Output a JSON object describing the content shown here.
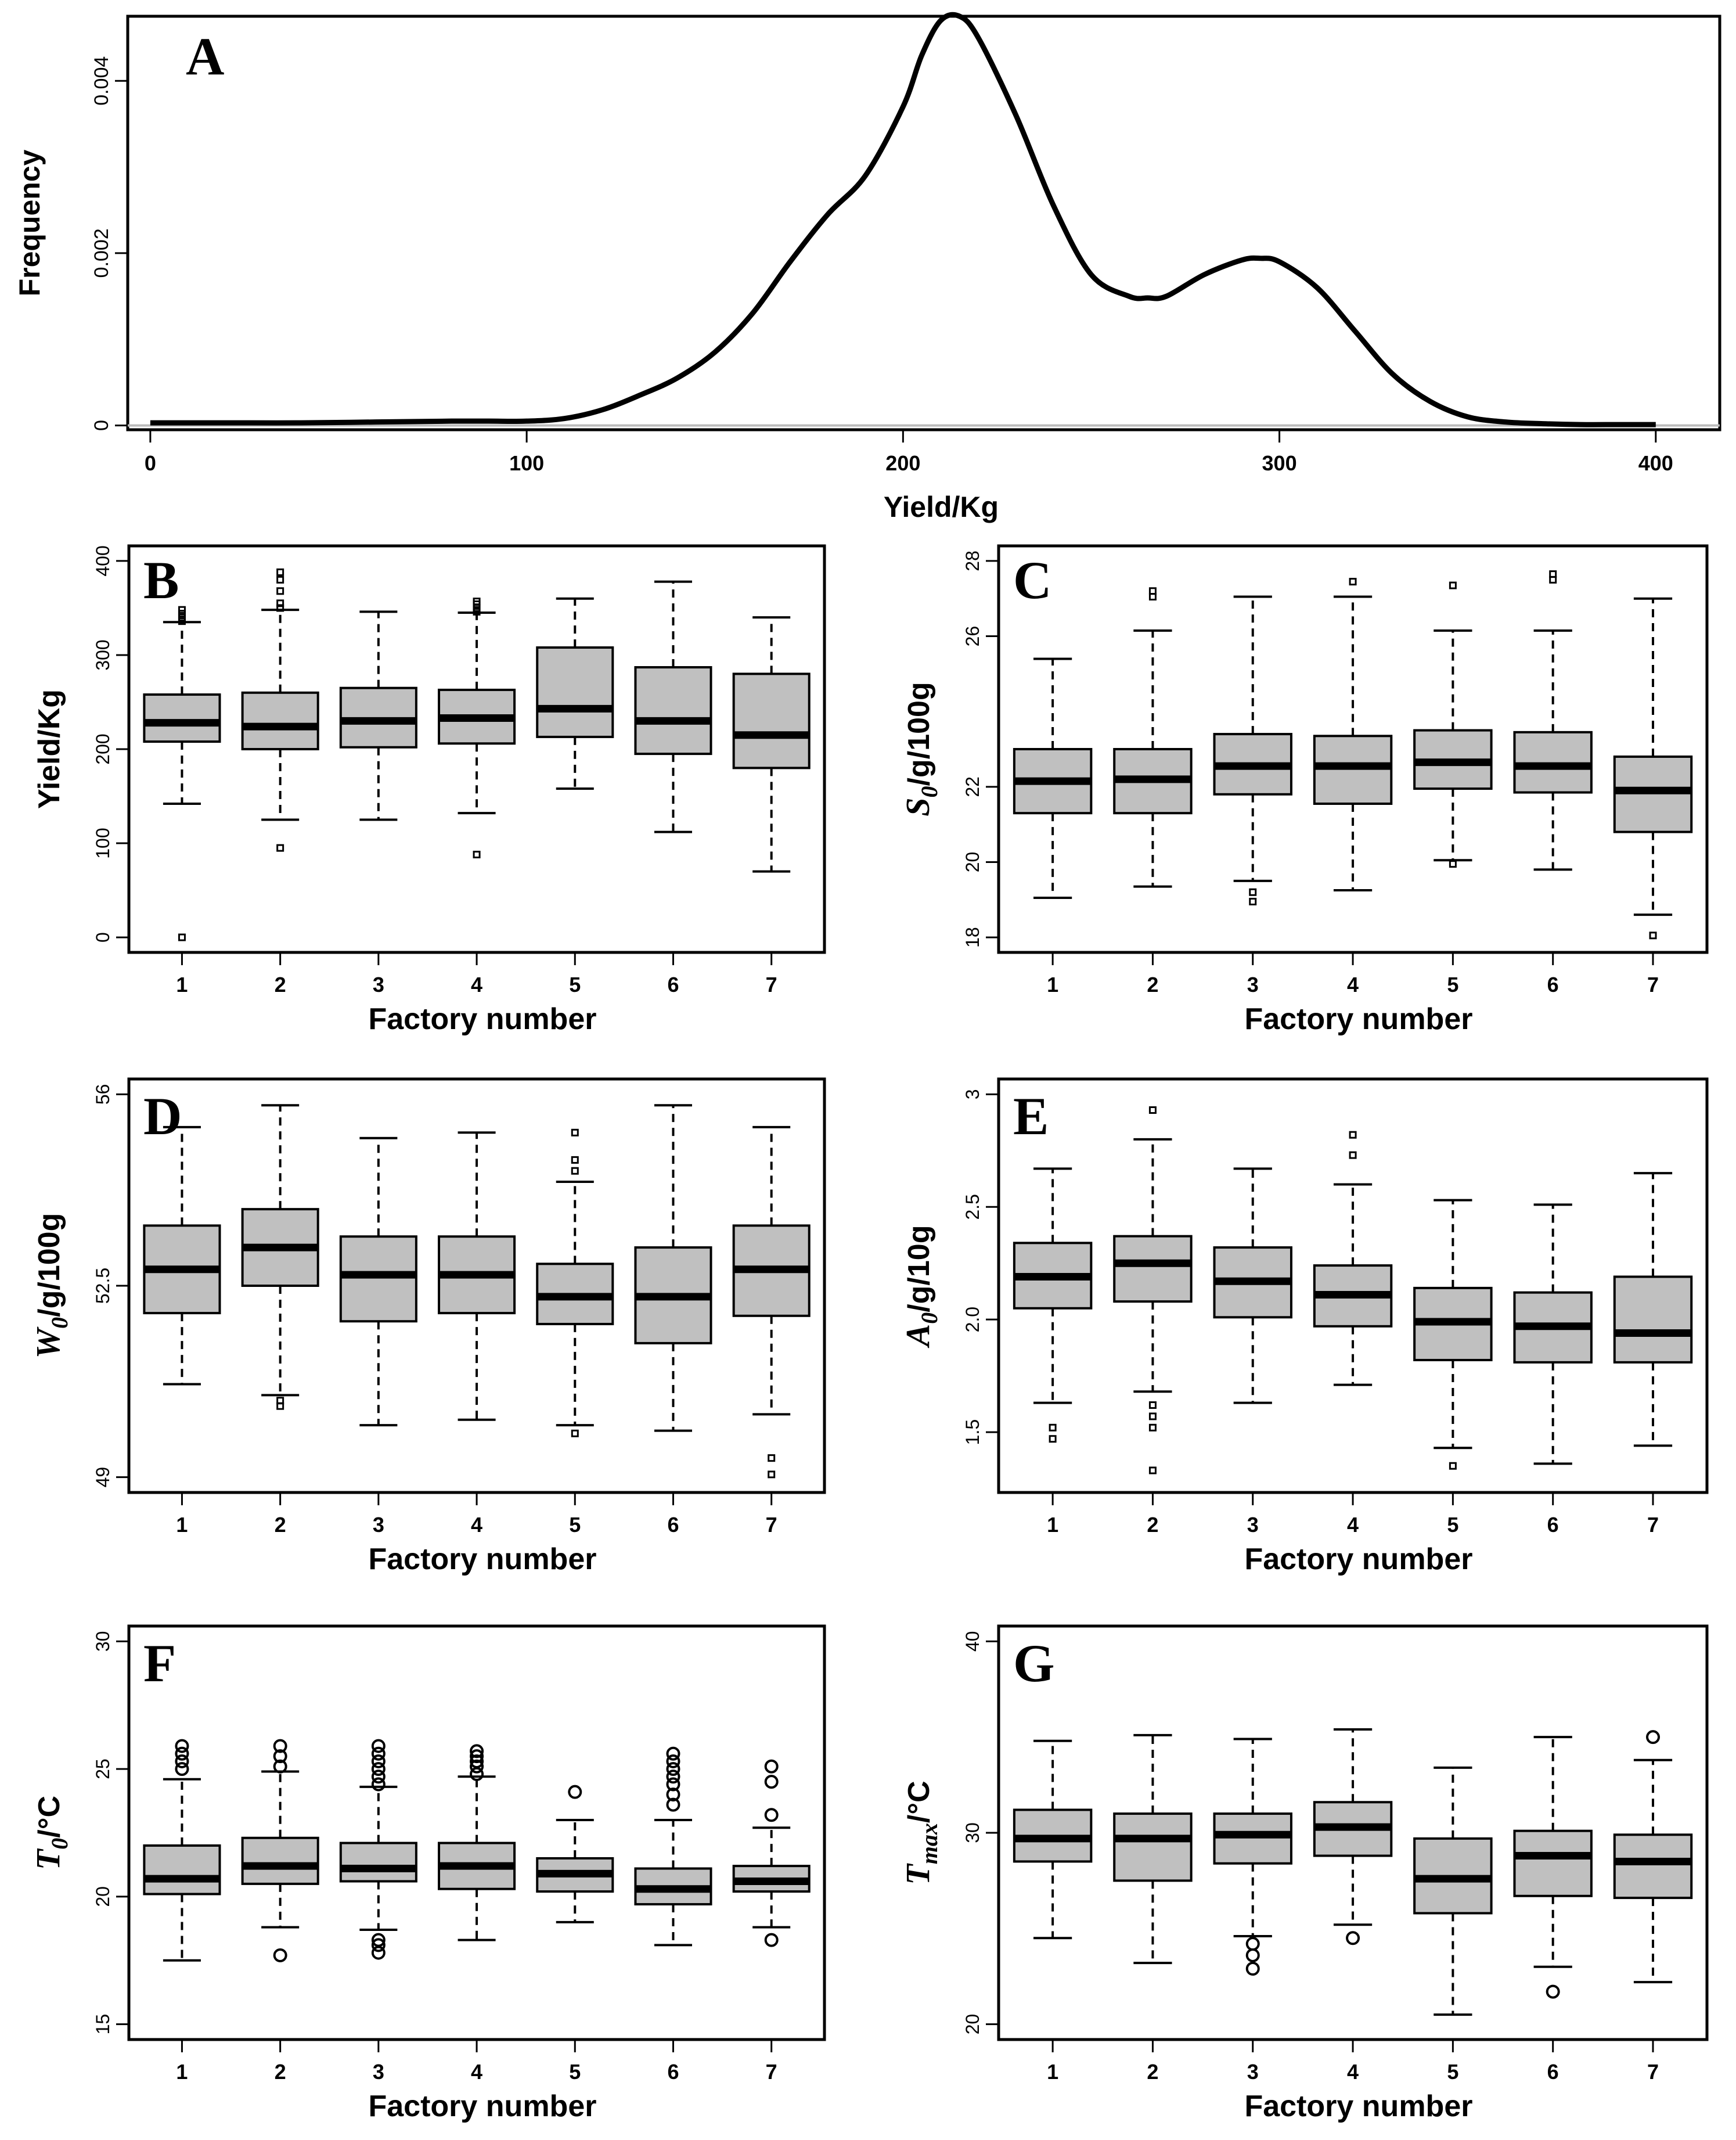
{
  "chart_data": [
    {
      "panel": "A",
      "type": "line",
      "title": "",
      "xlabel": "Yield/Kg",
      "ylabel": "Frequency",
      "xlim": [
        0,
        400
      ],
      "ylim": [
        0,
        0.0048
      ],
      "xticks": [
        "0",
        "100",
        "200",
        "300",
        "400"
      ],
      "yticks": [
        "0",
        "0.002",
        "0.004"
      ],
      "ytick_values": [
        0,
        0.002,
        0.004
      ],
      "x": [
        0,
        20,
        40,
        60,
        80,
        90,
        100,
        110,
        120,
        130,
        140,
        150,
        160,
        170,
        180,
        190,
        200,
        205,
        210,
        215,
        220,
        230,
        240,
        250,
        260,
        265,
        270,
        280,
        290,
        295,
        300,
        310,
        320,
        330,
        340,
        350,
        360,
        370,
        380,
        390,
        400
      ],
      "y": [
        3e-05,
        3e-05,
        3e-05,
        4e-05,
        5e-05,
        5e-05,
        5e-05,
        8e-05,
        0.00018,
        0.00035,
        0.00055,
        0.00085,
        0.0013,
        0.0019,
        0.00245,
        0.0029,
        0.0037,
        0.0043,
        0.0047,
        0.00475,
        0.0045,
        0.0036,
        0.00255,
        0.00175,
        0.0015,
        0.00148,
        0.0015,
        0.00175,
        0.00192,
        0.00194,
        0.0019,
        0.0016,
        0.0011,
        0.0006,
        0.00028,
        0.0001,
        4e-05,
        2e-05,
        1e-05,
        1e-05,
        1e-05
      ]
    },
    {
      "panel": "B",
      "type": "boxplot",
      "xlabel": "Factory number",
      "ylabel": "Yield/Kg",
      "ylim": [
        0,
        400
      ],
      "yticks": [
        "0",
        "100",
        "200",
        "300",
        "400"
      ],
      "ytick_values": [
        0,
        100,
        200,
        300,
        400
      ],
      "categories": [
        "1",
        "2",
        "3",
        "4",
        "5",
        "6",
        "7"
      ],
      "outlier_marker": "square",
      "boxes": [
        {
          "whislo": 142,
          "q1": 208,
          "med": 228,
          "q3": 258,
          "whishi": 335,
          "fliers": [
            0,
            336,
            340,
            344,
            348
          ]
        },
        {
          "whislo": 125,
          "q1": 200,
          "med": 224,
          "q3": 260,
          "whishi": 348,
          "fliers": [
            95,
            350,
            355,
            368,
            380,
            388
          ]
        },
        {
          "whislo": 125,
          "q1": 202,
          "med": 230,
          "q3": 265,
          "whishi": 346,
          "fliers": []
        },
        {
          "whislo": 132,
          "q1": 206,
          "med": 233,
          "q3": 263,
          "whishi": 345,
          "fliers": [
            88,
            346,
            350,
            354,
            357
          ]
        },
        {
          "whislo": 158,
          "q1": 213,
          "med": 243,
          "q3": 308,
          "whishi": 360,
          "fliers": []
        },
        {
          "whislo": 112,
          "q1": 195,
          "med": 230,
          "q3": 287,
          "whishi": 378,
          "fliers": []
        },
        {
          "whislo": 70,
          "q1": 180,
          "med": 215,
          "q3": 280,
          "whishi": 340,
          "fliers": []
        }
      ]
    },
    {
      "panel": "C",
      "type": "boxplot",
      "xlabel": "Factory number",
      "ylabel_main": "S",
      "ylabel_sub": "0",
      "ylabel_rest": "/g/100g",
      "ylim": [
        18,
        28
      ],
      "yticks": [
        "18",
        "20",
        "22",
        "26",
        "28"
      ],
      "ytick_values": [
        18,
        20,
        22,
        26,
        28
      ],
      "categories": [
        "1",
        "2",
        "3",
        "4",
        "5",
        "6",
        "7"
      ],
      "outlier_marker": "square",
      "boxes": [
        {
          "whislo": 19.05,
          "q1": 21.3,
          "med": 22.15,
          "q3": 23.0,
          "whishi": 25.4,
          "fliers": []
        },
        {
          "whislo": 19.35,
          "q1": 21.3,
          "med": 22.2,
          "q3": 23.0,
          "whishi": 26.15,
          "fliers": [
            27.05,
            27.2
          ]
        },
        {
          "whislo": 19.5,
          "q1": 21.8,
          "med": 22.55,
          "q3": 23.4,
          "whishi": 27.05,
          "fliers": [
            19.2,
            18.95
          ]
        },
        {
          "whislo": 19.25,
          "q1": 21.55,
          "med": 22.55,
          "q3": 23.35,
          "whishi": 27.05,
          "fliers": [
            27.45
          ]
        },
        {
          "whislo": 20.05,
          "q1": 21.95,
          "med": 22.65,
          "q3": 23.5,
          "whishi": 26.15,
          "fliers": [
            19.95,
            27.35
          ]
        },
        {
          "whislo": 19.8,
          "q1": 21.85,
          "med": 22.55,
          "q3": 23.45,
          "whishi": 26.15,
          "fliers": [
            27.5,
            27.65
          ]
        },
        {
          "whislo": 18.6,
          "q1": 20.8,
          "med": 21.9,
          "q3": 22.8,
          "whishi": 27.0,
          "fliers": [
            18.05
          ]
        }
      ]
    },
    {
      "panel": "D",
      "type": "boxplot",
      "xlabel": "Factory number",
      "ylabel_main": "W",
      "ylabel_sub": "0",
      "ylabel_rest": "/g/100g",
      "ylim": [
        49,
        56
      ],
      "yticks": [
        "49",
        "52.5",
        "56"
      ],
      "ytick_values": [
        49,
        52.5,
        56
      ],
      "categories": [
        "1",
        "2",
        "3",
        "4",
        "5",
        "6",
        "7"
      ],
      "outlier_marker": "square",
      "boxes": [
        {
          "whislo": 50.7,
          "q1": 52.0,
          "med": 52.8,
          "q3": 53.6,
          "whishi": 55.4,
          "fliers": []
        },
        {
          "whislo": 50.5,
          "q1": 52.5,
          "med": 53.2,
          "q3": 53.9,
          "whishi": 55.8,
          "fliers": [
            50.3,
            50.4
          ]
        },
        {
          "whislo": 49.95,
          "q1": 51.85,
          "med": 52.7,
          "q3": 53.4,
          "whishi": 55.2,
          "fliers": []
        },
        {
          "whislo": 50.05,
          "q1": 52.0,
          "med": 52.7,
          "q3": 53.4,
          "whishi": 55.3,
          "fliers": []
        },
        {
          "whislo": 49.95,
          "q1": 51.8,
          "med": 52.3,
          "q3": 52.9,
          "whishi": 54.4,
          "fliers": [
            49.8,
            54.6,
            54.8,
            55.3
          ]
        },
        {
          "whislo": 49.85,
          "q1": 51.45,
          "med": 52.3,
          "q3": 53.2,
          "whishi": 55.8,
          "fliers": []
        },
        {
          "whislo": 50.15,
          "q1": 51.95,
          "med": 52.8,
          "q3": 53.6,
          "whishi": 55.4,
          "fliers": [
            49.05,
            49.35
          ]
        }
      ]
    },
    {
      "panel": "E",
      "type": "boxplot",
      "xlabel": "Factory number",
      "ylabel_main": "A",
      "ylabel_sub": "0",
      "ylabel_rest": "/g/10g",
      "ylim": [
        1.3,
        3.0
      ],
      "yticks": [
        "1.5",
        "2.0",
        "2.5",
        "3"
      ],
      "ytick_values": [
        1.5,
        2.0,
        2.5,
        3.0
      ],
      "categories": [
        "1",
        "2",
        "3",
        "4",
        "5",
        "6",
        "7"
      ],
      "outlier_marker": "square",
      "boxes": [
        {
          "whislo": 1.63,
          "q1": 2.05,
          "med": 2.19,
          "q3": 2.34,
          "whishi": 2.67,
          "fliers": [
            1.47,
            1.52
          ]
        },
        {
          "whislo": 1.68,
          "q1": 2.08,
          "med": 2.25,
          "q3": 2.37,
          "whishi": 2.8,
          "fliers": [
            1.33,
            1.52,
            1.57,
            1.62,
            2.93
          ]
        },
        {
          "whislo": 1.63,
          "q1": 2.01,
          "med": 2.17,
          "q3": 2.32,
          "whishi": 2.67,
          "fliers": []
        },
        {
          "whislo": 1.71,
          "q1": 1.97,
          "med": 2.11,
          "q3": 2.24,
          "whishi": 2.6,
          "fliers": [
            2.73,
            2.82
          ]
        },
        {
          "whislo": 1.43,
          "q1": 1.82,
          "med": 1.99,
          "q3": 2.14,
          "whishi": 2.53,
          "fliers": [
            1.35
          ]
        },
        {
          "whislo": 1.36,
          "q1": 1.81,
          "med": 1.97,
          "q3": 2.12,
          "whishi": 2.51,
          "fliers": []
        },
        {
          "whislo": 1.44,
          "q1": 1.81,
          "med": 1.94,
          "q3": 2.19,
          "whishi": 2.65,
          "fliers": []
        }
      ]
    },
    {
      "panel": "F",
      "type": "boxplot",
      "xlabel": "Factory number",
      "ylabel_main": "T",
      "ylabel_sub": "0",
      "ylabel_rest": "/°C",
      "ylim": [
        15,
        30
      ],
      "yticks": [
        "15",
        "20",
        "25",
        "30"
      ],
      "ytick_values": [
        15,
        20,
        25,
        30
      ],
      "categories": [
        "1",
        "2",
        "3",
        "4",
        "5",
        "6",
        "7"
      ],
      "outlier_marker": "circle",
      "boxes": [
        {
          "whislo": 17.5,
          "q1": 20.1,
          "med": 20.7,
          "q3": 22.0,
          "whishi": 24.6,
          "fliers": [
            25.0,
            25.3,
            25.6,
            25.9
          ]
        },
        {
          "whislo": 18.8,
          "q1": 20.5,
          "med": 21.2,
          "q3": 22.3,
          "whishi": 24.9,
          "fliers": [
            17.7,
            25.1,
            25.5,
            25.9
          ]
        },
        {
          "whislo": 18.7,
          "q1": 20.6,
          "med": 21.1,
          "q3": 22.1,
          "whishi": 24.3,
          "fliers": [
            17.8,
            18.1,
            18.3,
            24.4,
            24.7,
            25.0,
            25.3,
            25.6,
            25.9
          ]
        },
        {
          "whislo": 18.3,
          "q1": 20.3,
          "med": 21.2,
          "q3": 22.1,
          "whishi": 24.7,
          "fliers": [
            24.8,
            25.1,
            25.3,
            25.5,
            25.7
          ]
        },
        {
          "whislo": 19.0,
          "q1": 20.2,
          "med": 20.9,
          "q3": 21.5,
          "whishi": 23.0,
          "fliers": [
            24.1
          ]
        },
        {
          "whislo": 18.1,
          "q1": 19.7,
          "med": 20.3,
          "q3": 21.1,
          "whishi": 23.0,
          "fliers": [
            23.6,
            24.0,
            24.4,
            24.7,
            25.0,
            25.3,
            25.6
          ]
        },
        {
          "whislo": 18.8,
          "q1": 20.2,
          "med": 20.6,
          "q3": 21.2,
          "whishi": 22.7,
          "fliers": [
            18.3,
            23.2,
            24.5,
            25.1
          ]
        }
      ]
    },
    {
      "panel": "G",
      "type": "boxplot",
      "xlabel": "Factory number",
      "ylabel_main": "T",
      "ylabel_sub": "max",
      "ylabel_rest": "/°C",
      "ylim": [
        20,
        40
      ],
      "yticks": [
        "20",
        "30",
        "40"
      ],
      "ytick_values": [
        20,
        30,
        40
      ],
      "categories": [
        "1",
        "2",
        "3",
        "4",
        "5",
        "6",
        "7"
      ],
      "outlier_marker": "circle",
      "boxes": [
        {
          "whislo": 24.5,
          "q1": 28.5,
          "med": 29.7,
          "q3": 31.2,
          "whishi": 34.8,
          "fliers": []
        },
        {
          "whislo": 23.2,
          "q1": 27.5,
          "med": 29.7,
          "q3": 31.0,
          "whishi": 35.1,
          "fliers": []
        },
        {
          "whislo": 24.6,
          "q1": 28.4,
          "med": 29.9,
          "q3": 31.0,
          "whishi": 34.9,
          "fliers": [
            22.9,
            23.6,
            24.2
          ]
        },
        {
          "whislo": 25.2,
          "q1": 28.8,
          "med": 30.3,
          "q3": 31.6,
          "whishi": 35.4,
          "fliers": [
            24.5
          ]
        },
        {
          "whislo": 20.5,
          "q1": 25.8,
          "med": 27.6,
          "q3": 29.7,
          "whishi": 33.4,
          "fliers": []
        },
        {
          "whislo": 23.0,
          "q1": 26.7,
          "med": 28.8,
          "q3": 30.1,
          "whishi": 35.0,
          "fliers": [
            21.7
          ]
        },
        {
          "whislo": 22.2,
          "q1": 26.6,
          "med": 28.5,
          "q3": 29.9,
          "whishi": 33.8,
          "fliers": [
            35.0
          ]
        }
      ]
    }
  ]
}
